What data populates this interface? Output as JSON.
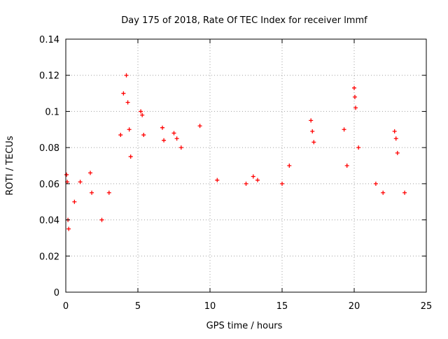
{
  "chart_data": {
    "type": "scatter",
    "title": "Day 175 of 2018, Rate Of TEC Index for receiver lmmf",
    "xlabel": "GPS time / hours",
    "ylabel": "ROTI / TECUs",
    "xlim": [
      0,
      25
    ],
    "ylim": [
      0,
      0.14
    ],
    "x_ticks": [
      0,
      5,
      10,
      15,
      20,
      25
    ],
    "y_ticks": [
      0,
      0.02,
      0.04,
      0.06,
      0.08,
      0.1,
      0.12,
      0.14
    ],
    "x_tick_labels": [
      "0",
      "5",
      "10",
      "15",
      "20",
      "25"
    ],
    "y_tick_labels": [
      "0",
      "0.02",
      "0.04",
      "0.06",
      "0.08",
      "0.1",
      "0.12",
      "0.14"
    ],
    "grid": true,
    "marker": "+",
    "marker_color": "#ff0000",
    "series": [
      {
        "name": "ROTI",
        "x": [
          0.05,
          0.1,
          0.15,
          0.2,
          0.6,
          1.0,
          1.7,
          1.8,
          2.5,
          3.0,
          3.8,
          4.0,
          4.2,
          4.3,
          4.4,
          4.5,
          5.2,
          5.3,
          5.4,
          6.7,
          6.8,
          7.5,
          7.7,
          8.0,
          9.3,
          10.5,
          12.5,
          13.0,
          13.3,
          15.0,
          15.5,
          17.0,
          17.1,
          17.2,
          19.3,
          19.5,
          20.0,
          20.05,
          20.1,
          20.3,
          21.5,
          22.0,
          22.8,
          22.9,
          23.0,
          23.5
        ],
        "y": [
          0.065,
          0.061,
          0.04,
          0.035,
          0.05,
          0.061,
          0.066,
          0.055,
          0.04,
          0.055,
          0.087,
          0.11,
          0.12,
          0.105,
          0.09,
          0.075,
          0.1,
          0.098,
          0.087,
          0.091,
          0.084,
          0.088,
          0.085,
          0.08,
          0.092,
          0.062,
          0.06,
          0.064,
          0.062,
          0.06,
          0.07,
          0.095,
          0.089,
          0.083,
          0.09,
          0.07,
          0.113,
          0.108,
          0.102,
          0.08,
          0.06,
          0.055,
          0.089,
          0.085,
          0.077,
          0.055
        ]
      }
    ]
  }
}
